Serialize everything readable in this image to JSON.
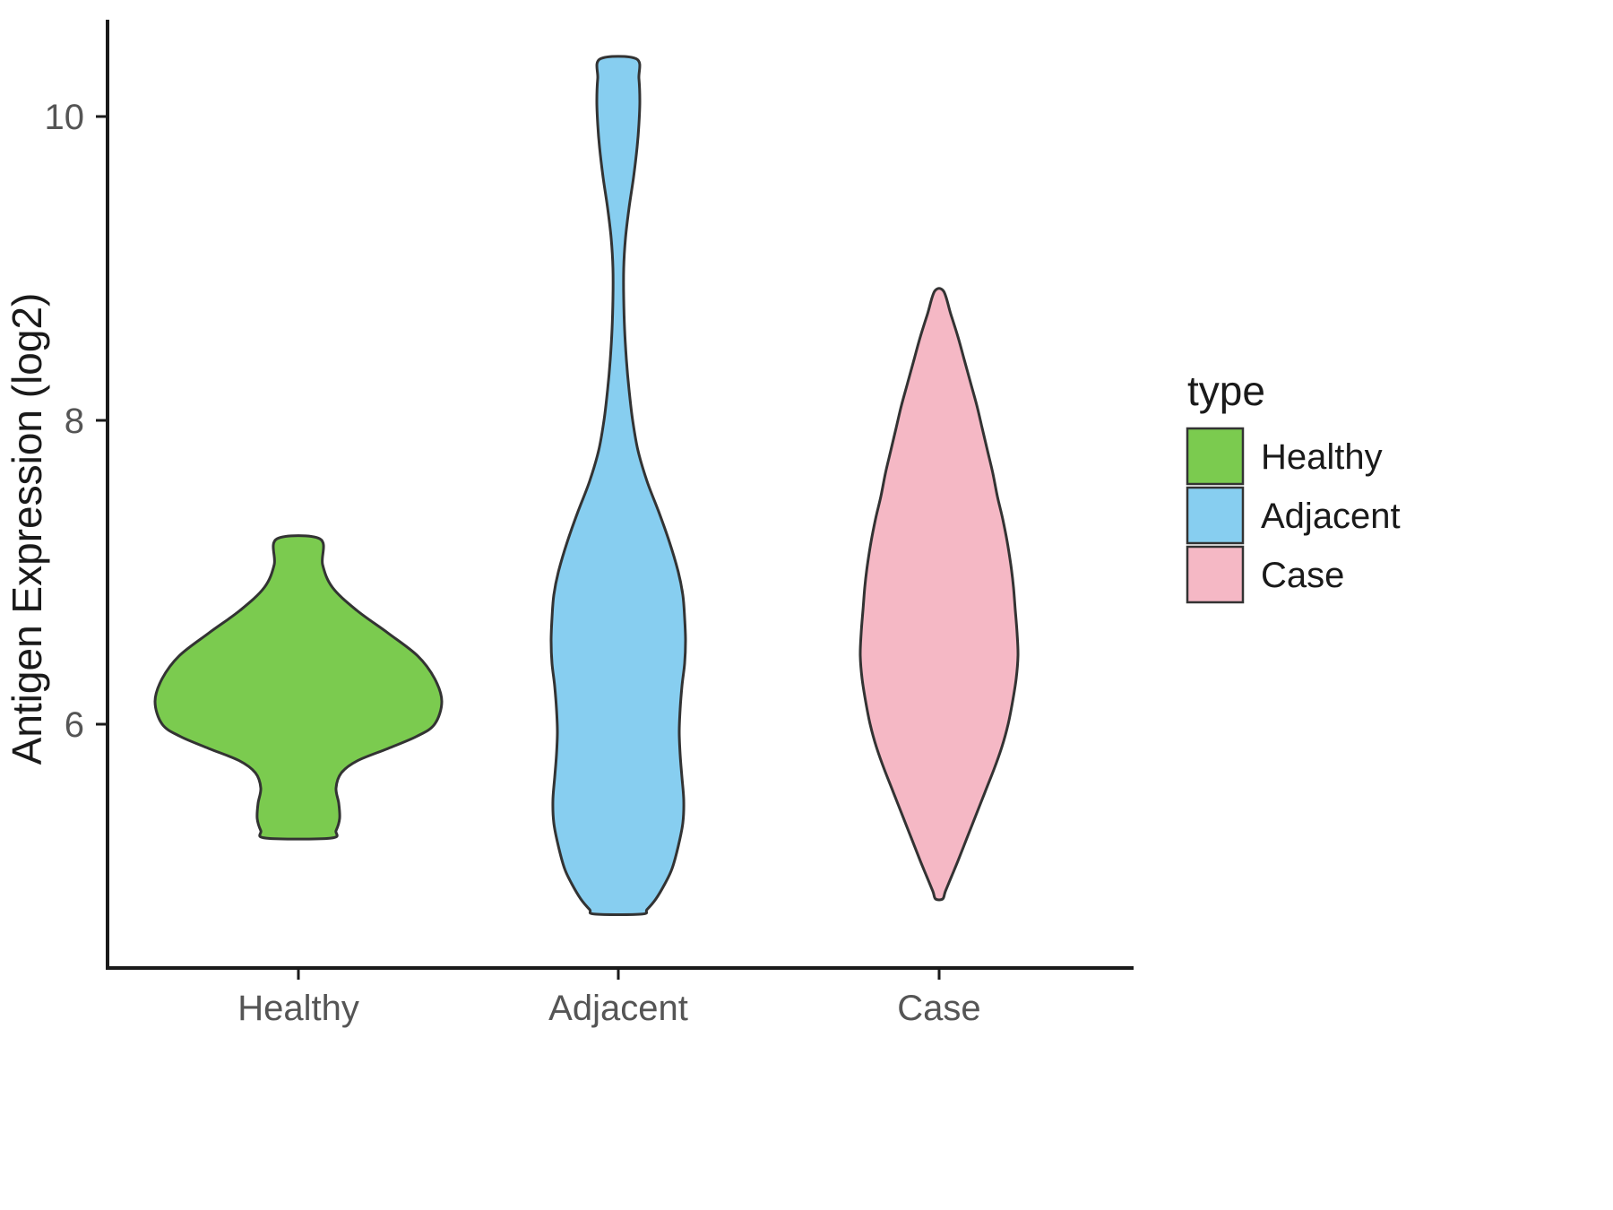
{
  "chart_data": {
    "type": "violin",
    "title": "",
    "xlabel": "",
    "ylabel": "Antigen Expression (log2)",
    "ylim": [
      4.3,
      10.65
    ],
    "yticks": [
      6,
      8,
      10
    ],
    "grid": false,
    "categories": [
      "Healthy",
      "Adjacent",
      "Case"
    ],
    "legend": {
      "title": "type",
      "position": "right",
      "entries": [
        {
          "label": "Healthy",
          "color": "#7BCB4F"
        },
        {
          "label": "Adjacent",
          "color": "#87CEF0"
        },
        {
          "label": "Case",
          "color": "#F5B8C5"
        }
      ]
    },
    "series": [
      {
        "name": "Healthy",
        "color": "#7BCB4F",
        "profile": [
          [
            7.22,
            24
          ],
          [
            7.05,
            27
          ],
          [
            6.9,
            38
          ],
          [
            6.75,
            65
          ],
          [
            6.6,
            100
          ],
          [
            6.45,
            133
          ],
          [
            6.3,
            152
          ],
          [
            6.15,
            160
          ],
          [
            6.0,
            152
          ],
          [
            5.92,
            132
          ],
          [
            5.84,
            100
          ],
          [
            5.76,
            66
          ],
          [
            5.68,
            48
          ],
          [
            5.58,
            42
          ],
          [
            5.48,
            45
          ],
          [
            5.38,
            46
          ],
          [
            5.3,
            42
          ],
          [
            5.25,
            36
          ]
        ]
      },
      {
        "name": "Adjacent",
        "color": "#87CEF0",
        "profile": [
          [
            10.38,
            20
          ],
          [
            10.25,
            23
          ],
          [
            10.1,
            24
          ],
          [
            9.95,
            23
          ],
          [
            9.8,
            21
          ],
          [
            9.6,
            17
          ],
          [
            9.4,
            12
          ],
          [
            9.2,
            8
          ],
          [
            9.0,
            6
          ],
          [
            8.8,
            6
          ],
          [
            8.6,
            7
          ],
          [
            8.4,
            9
          ],
          [
            8.2,
            12
          ],
          [
            8.0,
            16
          ],
          [
            7.8,
            22
          ],
          [
            7.6,
            32
          ],
          [
            7.4,
            45
          ],
          [
            7.2,
            57
          ],
          [
            7.0,
            67
          ],
          [
            6.85,
            72
          ],
          [
            6.7,
            74
          ],
          [
            6.55,
            75
          ],
          [
            6.4,
            74
          ],
          [
            6.25,
            71
          ],
          [
            6.1,
            69
          ],
          [
            5.95,
            68
          ],
          [
            5.8,
            69
          ],
          [
            5.65,
            71
          ],
          [
            5.5,
            73
          ],
          [
            5.35,
            72
          ],
          [
            5.2,
            67
          ],
          [
            5.05,
            60
          ],
          [
            4.95,
            52
          ],
          [
            4.85,
            42
          ],
          [
            4.78,
            32
          ],
          [
            4.75,
            26
          ]
        ]
      },
      {
        "name": "Case",
        "color": "#F5B8C5",
        "profile": [
          [
            8.85,
            5
          ],
          [
            8.7,
            13
          ],
          [
            8.55,
            21
          ],
          [
            8.4,
            28
          ],
          [
            8.25,
            35
          ],
          [
            8.1,
            42
          ],
          [
            7.95,
            48
          ],
          [
            7.8,
            54
          ],
          [
            7.65,
            60
          ],
          [
            7.5,
            65
          ],
          [
            7.35,
            71
          ],
          [
            7.2,
            76
          ],
          [
            7.05,
            80
          ],
          [
            6.9,
            83
          ],
          [
            6.75,
            85
          ],
          [
            6.6,
            87
          ],
          [
            6.45,
            88
          ],
          [
            6.3,
            86
          ],
          [
            6.15,
            82
          ],
          [
            6.0,
            77
          ],
          [
            5.85,
            70
          ],
          [
            5.7,
            61
          ],
          [
            5.55,
            51
          ],
          [
            5.4,
            41
          ],
          [
            5.25,
            31
          ],
          [
            5.1,
            21
          ],
          [
            5.0,
            14
          ],
          [
            4.9,
            7
          ],
          [
            4.85,
            4
          ]
        ]
      }
    ]
  },
  "style": {
    "axis_color": "#1a1a1a",
    "tick_label_color": "#555555",
    "outline_color": "#333333",
    "legend_text_color": "#1a1a1a"
  }
}
